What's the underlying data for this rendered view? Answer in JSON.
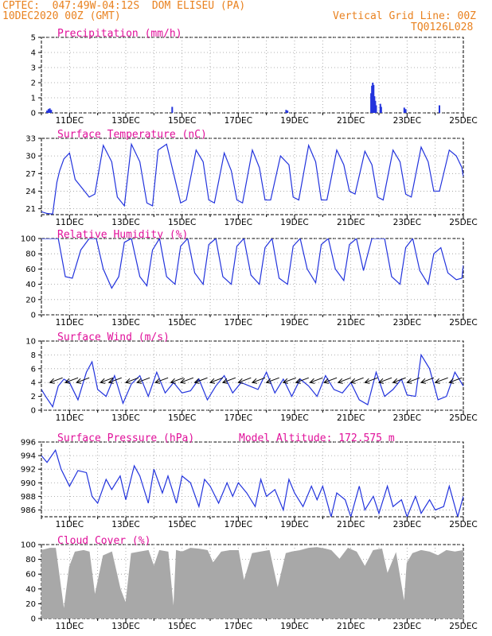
{
  "header": {
    "source_coords": "CPTEC:  047:49W-04:12S  DOM ELISEU (PA)",
    "datetime": "10DEC2020 00Z (GMT)",
    "grid_note": "Vertical Grid Line: 00Z",
    "run_code": "TQ0126L028"
  },
  "x_axis": {
    "tick_labels": [
      "11DEC",
      "13DEC",
      "15DEC",
      "17DEC",
      "19DEC",
      "21DEC",
      "23DEC",
      "25DEC"
    ],
    "day_range": [
      10,
      25
    ]
  },
  "colors": {
    "header": "#e98220",
    "title": "#e0109a",
    "line": "#2233dd",
    "bars": "#2233dd",
    "cloud": "#a8a8a8"
  },
  "chart_data": [
    {
      "type": "bar",
      "title": "Precipitation (mm/h)",
      "ylim": [
        0,
        5
      ],
      "yticks": [
        0,
        1,
        2,
        3,
        4,
        5
      ],
      "x": [
        10.2,
        10.25,
        10.3,
        10.35,
        14.65,
        18.7,
        18.75,
        21.72,
        21.75,
        21.78,
        21.81,
        21.84,
        21.87,
        21.9,
        22.05,
        22.08,
        22.9,
        22.95,
        24.15
      ],
      "values": [
        0.15,
        0.25,
        0.3,
        0.2,
        0.4,
        0.2,
        0.15,
        1.3,
        1.8,
        2.0,
        1.85,
        1.1,
        0.8,
        0.5,
        0.6,
        0.4,
        0.35,
        0.25,
        0.5
      ]
    },
    {
      "type": "line",
      "title": "Surface Temperature (nC)",
      "ylim": [
        20,
        33
      ],
      "yticks": [
        21,
        24,
        27,
        30,
        33
      ],
      "x": [
        10,
        10.2,
        10.4,
        10.55,
        10.65,
        10.8,
        11.0,
        11.2,
        11.45,
        11.7,
        11.9,
        12.2,
        12.5,
        12.7,
        12.95,
        13.2,
        13.5,
        13.75,
        13.95,
        14.15,
        14.45,
        14.75,
        14.95,
        15.15,
        15.5,
        15.75,
        15.95,
        16.15,
        16.5,
        16.75,
        16.95,
        17.15,
        17.5,
        17.75,
        17.95,
        18.15,
        18.5,
        18.8,
        18.95,
        19.15,
        19.5,
        19.75,
        19.95,
        20.15,
        20.5,
        20.75,
        20.95,
        21.15,
        21.5,
        21.75,
        21.95,
        22.15,
        22.5,
        22.75,
        22.95,
        23.15,
        23.5,
        23.75,
        23.95,
        24.15,
        24.5,
        24.75,
        24.95,
        25
      ],
      "values": [
        20.5,
        20.2,
        20.1,
        25.5,
        27.5,
        29.5,
        30.5,
        26.0,
        24.5,
        23.0,
        23.5,
        31.8,
        29.0,
        23.0,
        21.5,
        32.0,
        29.0,
        22.0,
        21.5,
        31.0,
        32.0,
        26.0,
        22.0,
        22.5,
        31.0,
        29.0,
        22.5,
        22.0,
        30.5,
        27.5,
        22.5,
        22.0,
        31.0,
        28.0,
        22.5,
        22.5,
        30.0,
        28.5,
        23.0,
        22.5,
        31.8,
        29.0,
        22.5,
        22.5,
        31.0,
        28.5,
        24.0,
        23.5,
        30.8,
        28.5,
        23.0,
        22.5,
        31.0,
        29.0,
        23.5,
        23.0,
        31.5,
        29.0,
        24.0,
        24.0,
        31.0,
        30.0,
        28.0,
        26.5
      ]
    },
    {
      "type": "line",
      "title": "Relative Humidity (%)",
      "ylim": [
        0,
        100
      ],
      "yticks": [
        0,
        20,
        40,
        60,
        80,
        100
      ],
      "x": [
        10,
        10.3,
        10.6,
        10.85,
        11.1,
        11.4,
        11.7,
        11.95,
        12.2,
        12.5,
        12.75,
        12.95,
        13.2,
        13.5,
        13.75,
        13.95,
        14.2,
        14.45,
        14.75,
        14.95,
        15.2,
        15.45,
        15.75,
        15.95,
        16.2,
        16.45,
        16.75,
        16.95,
        17.2,
        17.45,
        17.75,
        17.95,
        18.2,
        18.45,
        18.75,
        18.95,
        19.2,
        19.45,
        19.75,
        19.95,
        20.2,
        20.45,
        20.75,
        20.95,
        21.2,
        21.45,
        21.75,
        21.95,
        22.2,
        22.45,
        22.75,
        22.95,
        23.2,
        23.45,
        23.75,
        23.95,
        24.2,
        24.45,
        24.75,
        24.95,
        25
      ],
      "values": [
        100,
        100,
        100,
        50,
        48,
        85,
        100,
        100,
        60,
        35,
        50,
        95,
        100,
        50,
        38,
        85,
        100,
        50,
        40,
        90,
        100,
        55,
        40,
        92,
        100,
        50,
        40,
        90,
        100,
        52,
        40,
        88,
        100,
        48,
        40,
        90,
        100,
        60,
        42,
        92,
        100,
        60,
        45,
        92,
        100,
        58,
        100,
        100,
        100,
        50,
        40,
        88,
        100,
        58,
        40,
        80,
        88,
        55,
        46,
        48,
        65
      ]
    },
    {
      "type": "line",
      "title": "Surface Wind (m/s)",
      "ylim": [
        0,
        10
      ],
      "yticks": [
        0,
        2,
        4,
        6,
        8,
        10
      ],
      "x": [
        10,
        10.15,
        10.4,
        10.6,
        10.8,
        11.0,
        11.3,
        11.6,
        11.8,
        12.0,
        12.3,
        12.6,
        12.9,
        13.2,
        13.5,
        13.8,
        14.1,
        14.4,
        14.7,
        15.0,
        15.3,
        15.6,
        15.9,
        16.2,
        16.5,
        16.8,
        17.1,
        17.4,
        17.7,
        18.0,
        18.3,
        18.6,
        18.9,
        19.2,
        19.5,
        19.8,
        20.1,
        20.4,
        20.7,
        21.0,
        21.3,
        21.6,
        21.9,
        22.2,
        22.5,
        22.8,
        23.0,
        23.3,
        23.5,
        23.8,
        24.1,
        24.4,
        24.7,
        25
      ],
      "values": [
        3.0,
        2.0,
        0.5,
        3.5,
        4.5,
        4.0,
        1.5,
        5.5,
        7.0,
        3.0,
        2.0,
        5.0,
        1.0,
        3.8,
        5.0,
        2.0,
        5.5,
        2.5,
        4.0,
        2.5,
        2.8,
        4.5,
        1.5,
        3.5,
        5.0,
        2.5,
        4.0,
        3.5,
        3.0,
        5.5,
        2.5,
        4.5,
        2.0,
        4.5,
        3.5,
        2.0,
        5.0,
        3.0,
        2.5,
        4.0,
        1.5,
        0.8,
        5.5,
        2.0,
        3.0,
        4.5,
        2.2,
        2.0,
        8.0,
        6.0,
        1.5,
        2.0,
        5.5,
        3.5
      ],
      "arrow_days": [
        10.3,
        10.85,
        11.25,
        12.1,
        12.4,
        13.0,
        13.4,
        14.05,
        14.6,
        14.95,
        15.45,
        16.0,
        16.45,
        17.0,
        17.5,
        18.0,
        18.6,
        19.05,
        19.55,
        20.05,
        20.55,
        21.0,
        21.5,
        22.0,
        22.5,
        23.0,
        23.5,
        24.0,
        24.5,
        25.0
      ]
    },
    {
      "type": "line",
      "title": "Surface Pressure (hPa)",
      "subtitle": "Model Altitude: 172.575 m",
      "ylim": [
        985,
        996
      ],
      "yticks": [
        986,
        988,
        990,
        992,
        994,
        996
      ],
      "x": [
        10,
        10.2,
        10.5,
        10.7,
        11.0,
        11.3,
        11.6,
        11.8,
        12.0,
        12.3,
        12.5,
        12.8,
        13.0,
        13.3,
        13.5,
        13.8,
        14.0,
        14.3,
        14.5,
        14.8,
        15.0,
        15.3,
        15.6,
        15.8,
        16.0,
        16.3,
        16.6,
        16.8,
        17.0,
        17.3,
        17.6,
        17.8,
        18.0,
        18.3,
        18.6,
        18.8,
        19.0,
        19.3,
        19.6,
        19.8,
        20.0,
        20.3,
        20.5,
        20.8,
        21.0,
        21.3,
        21.5,
        21.8,
        22.0,
        22.3,
        22.5,
        22.8,
        23.0,
        23.3,
        23.5,
        23.8,
        24.0,
        24.3,
        24.5,
        24.8,
        25
      ],
      "values": [
        994.0,
        993.0,
        994.8,
        992.0,
        989.5,
        991.8,
        991.5,
        988.0,
        987.0,
        990.5,
        989.0,
        991.0,
        987.5,
        992.5,
        991.0,
        987.0,
        992.0,
        988.5,
        991.0,
        987.0,
        991.0,
        990.0,
        986.5,
        990.5,
        989.5,
        987.0,
        990.0,
        988.0,
        990.0,
        988.5,
        986.5,
        990.5,
        988.0,
        989.0,
        986.0,
        990.5,
        988.5,
        986.5,
        989.5,
        987.5,
        989.5,
        985.0,
        988.5,
        987.5,
        985.0,
        989.5,
        986.0,
        988.0,
        985.5,
        989.5,
        986.5,
        987.5,
        985.0,
        988.0,
        985.5,
        987.5,
        986.0,
        986.5,
        989.5,
        985.0,
        988.0
      ]
    },
    {
      "type": "area",
      "title": "Cloud Cover (%)",
      "ylim": [
        0,
        100
      ],
      "yticks": [
        0,
        20,
        40,
        60,
        80,
        100
      ],
      "x": [
        10,
        10.3,
        10.5,
        10.8,
        11.0,
        11.2,
        11.5,
        11.7,
        11.9,
        12.2,
        12.5,
        12.8,
        13.0,
        13.2,
        13.5,
        13.8,
        14.0,
        14.2,
        14.5,
        14.7,
        14.8,
        15.0,
        15.3,
        15.6,
        15.9,
        16.1,
        16.4,
        16.7,
        17.0,
        17.2,
        17.5,
        17.8,
        18.1,
        18.4,
        18.7,
        18.9,
        19.2,
        19.5,
        19.8,
        20.1,
        20.3,
        20.6,
        20.9,
        21.2,
        21.5,
        21.8,
        22.1,
        22.3,
        22.6,
        22.9,
        23.0,
        23.2,
        23.5,
        23.8,
        24.1,
        24.4,
        24.7,
        25
      ],
      "values": [
        92,
        95,
        95,
        10,
        70,
        90,
        92,
        90,
        30,
        85,
        90,
        40,
        20,
        88,
        90,
        92,
        70,
        92,
        90,
        10,
        92,
        90,
        95,
        94,
        92,
        75,
        90,
        92,
        92,
        50,
        88,
        90,
        92,
        40,
        88,
        90,
        92,
        95,
        96,
        94,
        92,
        80,
        95,
        90,
        70,
        92,
        94,
        60,
        88,
        20,
        75,
        88,
        92,
        90,
        85,
        92,
        90,
        92
      ]
    }
  ]
}
